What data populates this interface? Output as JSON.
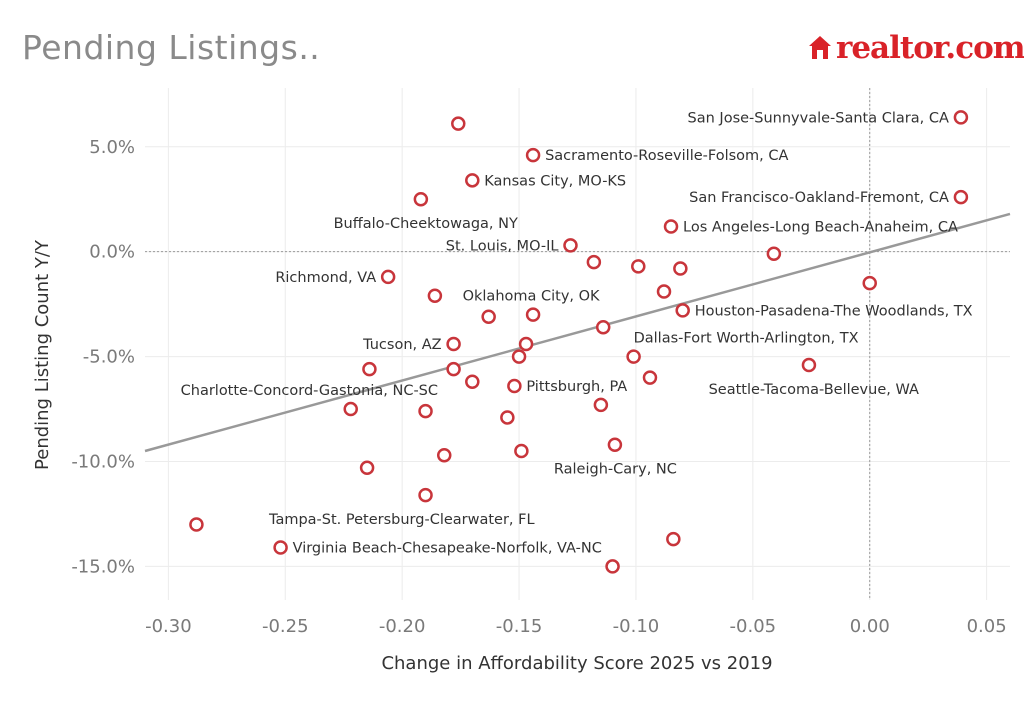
{
  "chart_data": {
    "type": "scatter",
    "title": "Pending Listings..",
    "brand": "realtor.com",
    "xlabel": "Change in Affordability Score 2025 vs 2019",
    "ylabel": "Pending Listing Count Y/Y",
    "xlim": [
      -0.31,
      0.06
    ],
    "ylim": [
      -16.6,
      7.8
    ],
    "x_ticks": [
      -0.3,
      -0.25,
      -0.2,
      -0.15,
      -0.1,
      -0.05,
      0.0,
      0.05
    ],
    "x_tick_labels": [
      "-0.30",
      "-0.25",
      "-0.20",
      "-0.15",
      "-0.10",
      "-0.05",
      "0.00",
      "0.05"
    ],
    "y_ticks": [
      5,
      0,
      -5,
      -10,
      -15
    ],
    "y_tick_labels": [
      "5.0%",
      "0.0%",
      "-5.0%",
      "-10.0%",
      "-15.0%"
    ],
    "reference_lines": {
      "x": 0.0,
      "y": 0.0
    },
    "trend_line": {
      "x": [
        -0.31,
        0.06
      ],
      "y": [
        -9.5,
        1.8
      ]
    },
    "marker_color": "#c8353b",
    "trend_color": "#999999",
    "points": [
      {
        "x": 0.039,
        "y": 6.4,
        "label": "San Jose-Sunnyvale-Santa Clara, CA",
        "anchor": "end"
      },
      {
        "x": 0.039,
        "y": 2.6,
        "label": "San Francisco-Oakland-Fremont, CA",
        "anchor": "end"
      },
      {
        "x": -0.144,
        "y": 4.6,
        "label": "Sacramento-Roseville-Folsom, CA",
        "anchor": "start"
      },
      {
        "x": -0.17,
        "y": 3.4,
        "label": "Kansas City, MO-KS",
        "anchor": "start"
      },
      {
        "x": -0.192,
        "y": 2.5,
        "label": "Buffalo-Cheektowaga, NY",
        "anchor": "below"
      },
      {
        "x": -0.085,
        "y": 1.2,
        "label": "Los Angeles-Long Beach-Anaheim, CA",
        "anchor": "start"
      },
      {
        "x": -0.128,
        "y": 0.3,
        "label": "St. Louis, MO-IL",
        "anchor": "end"
      },
      {
        "x": -0.206,
        "y": -1.2,
        "label": "Richmond, VA",
        "anchor": "end"
      },
      {
        "x": -0.144,
        "y": -3.0,
        "label": "Oklahoma City, OK",
        "anchor": "above"
      },
      {
        "x": -0.08,
        "y": -2.8,
        "label": "Houston-Pasadena-The Woodlands, TX",
        "anchor": "start"
      },
      {
        "x": -0.178,
        "y": -4.4,
        "label": "Tucson, AZ",
        "anchor": "end"
      },
      {
        "x": -0.101,
        "y": -5.0,
        "label": "Dallas-Fort Worth-Arlington, TX",
        "anchor": "above-start"
      },
      {
        "x": -0.026,
        "y": -5.4,
        "label": "Seattle-Tacoma-Bellevue, WA",
        "anchor": "below"
      },
      {
        "x": -0.222,
        "y": -7.5,
        "label": "Charlotte-Concord-Gastonia, NC-SC",
        "anchor": "above-right"
      },
      {
        "x": -0.152,
        "y": -6.4,
        "label": "Pittsburgh, PA",
        "anchor": "start"
      },
      {
        "x": -0.109,
        "y": -9.2,
        "label": "Raleigh-Cary, NC",
        "anchor": "below"
      },
      {
        "x": -0.19,
        "y": -11.6,
        "label": "Tampa-St. Petersburg-Clearwater, FL",
        "anchor": "below-right"
      },
      {
        "x": -0.252,
        "y": -14.1,
        "label": "Virginia Beach-Chesapeake-Norfolk, VA-NC",
        "anchor": "start"
      },
      {
        "x": -0.176,
        "y": 6.1,
        "label": ""
      },
      {
        "x": -0.118,
        "y": -0.5,
        "label": ""
      },
      {
        "x": -0.099,
        "y": -0.7,
        "label": ""
      },
      {
        "x": -0.081,
        "y": -0.8,
        "label": ""
      },
      {
        "x": -0.041,
        "y": -0.1,
        "label": ""
      },
      {
        "x": 0.0,
        "y": -1.5,
        "label": ""
      },
      {
        "x": -0.186,
        "y": -2.1,
        "label": ""
      },
      {
        "x": -0.088,
        "y": -1.9,
        "label": ""
      },
      {
        "x": -0.163,
        "y": -3.1,
        "label": ""
      },
      {
        "x": -0.114,
        "y": -3.6,
        "label": ""
      },
      {
        "x": -0.147,
        "y": -4.4,
        "label": ""
      },
      {
        "x": -0.15,
        "y": -5.0,
        "label": ""
      },
      {
        "x": -0.214,
        "y": -5.6,
        "label": ""
      },
      {
        "x": -0.178,
        "y": -5.6,
        "label": ""
      },
      {
        "x": -0.17,
        "y": -6.2,
        "label": ""
      },
      {
        "x": -0.094,
        "y": -6.0,
        "label": ""
      },
      {
        "x": -0.19,
        "y": -7.6,
        "label": ""
      },
      {
        "x": -0.115,
        "y": -7.3,
        "label": ""
      },
      {
        "x": -0.155,
        "y": -7.9,
        "label": ""
      },
      {
        "x": -0.182,
        "y": -9.7,
        "label": ""
      },
      {
        "x": -0.149,
        "y": -9.5,
        "label": ""
      },
      {
        "x": -0.215,
        "y": -10.3,
        "label": ""
      },
      {
        "x": -0.288,
        "y": -13.0,
        "label": ""
      },
      {
        "x": -0.084,
        "y": -13.7,
        "label": ""
      },
      {
        "x": -0.11,
        "y": -15.0,
        "label": ""
      }
    ]
  }
}
